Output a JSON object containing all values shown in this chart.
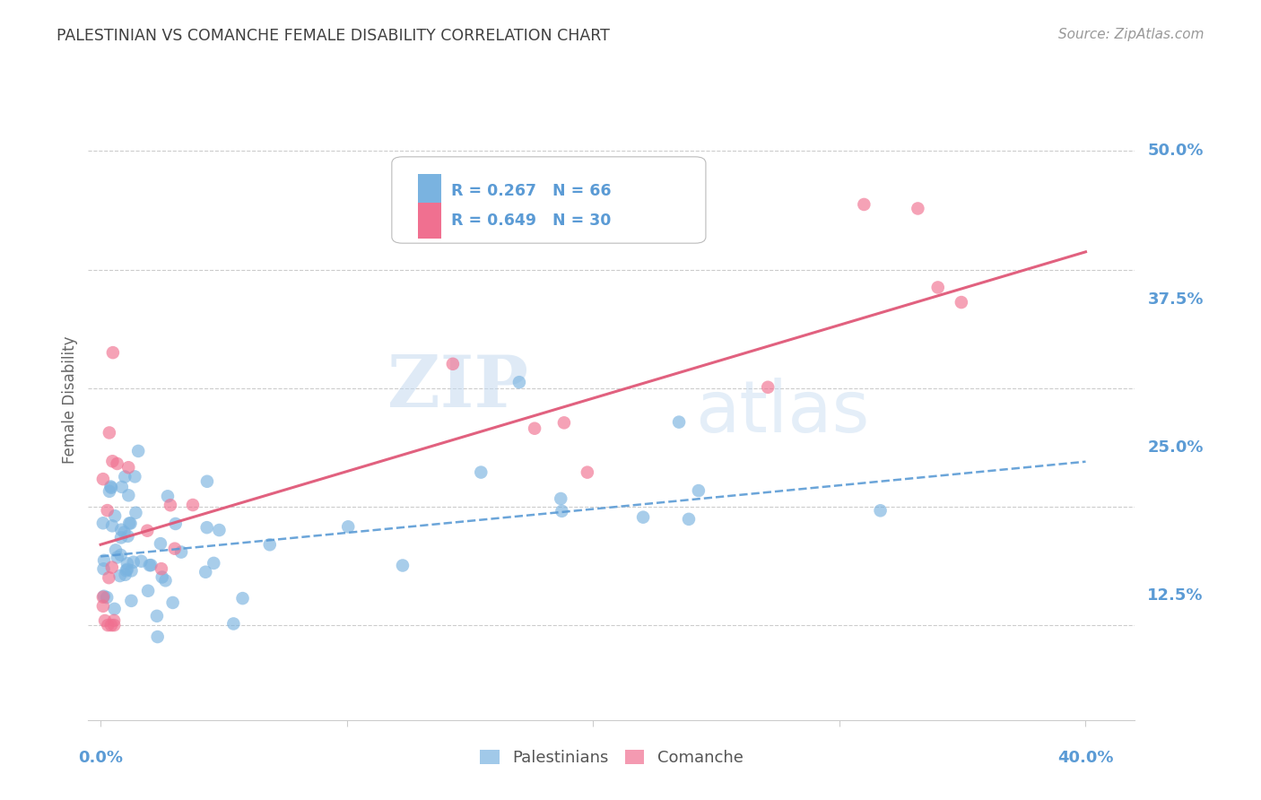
{
  "title": "PALESTINIAN VS COMANCHE FEMALE DISABILITY CORRELATION CHART",
  "source": "Source: ZipAtlas.com",
  "ylabel": "Female Disability",
  "ytick_labels": [
    "12.5%",
    "25.0%",
    "37.5%",
    "50.0%"
  ],
  "ytick_values": [
    0.125,
    0.25,
    0.375,
    0.5
  ],
  "xlim": [
    -0.005,
    0.42
  ],
  "ylim": [
    0.02,
    0.56
  ],
  "watermark_zip": "ZIP",
  "watermark_atlas": "atlas",
  "pal_color": "#7ab3e0",
  "com_color": "#f07090",
  "pal_line_color": "#5b9bd5",
  "com_line_color": "#e05878",
  "bg_color": "#ffffff",
  "grid_color": "#cccccc",
  "title_color": "#404040",
  "tick_color": "#5b9bd5",
  "legend_R1": "R = 0.267",
  "legend_N1": "N = 66",
  "legend_R2": "R = 0.649",
  "legend_N2": "N = 30",
  "label_palestinians": "Palestinians",
  "label_comanche": "Comanche",
  "pal_line_x": [
    0.0,
    0.4
  ],
  "pal_line_y": [
    0.158,
    0.238
  ],
  "com_line_x": [
    0.0,
    0.4
  ],
  "com_line_y": [
    0.168,
    0.415
  ]
}
